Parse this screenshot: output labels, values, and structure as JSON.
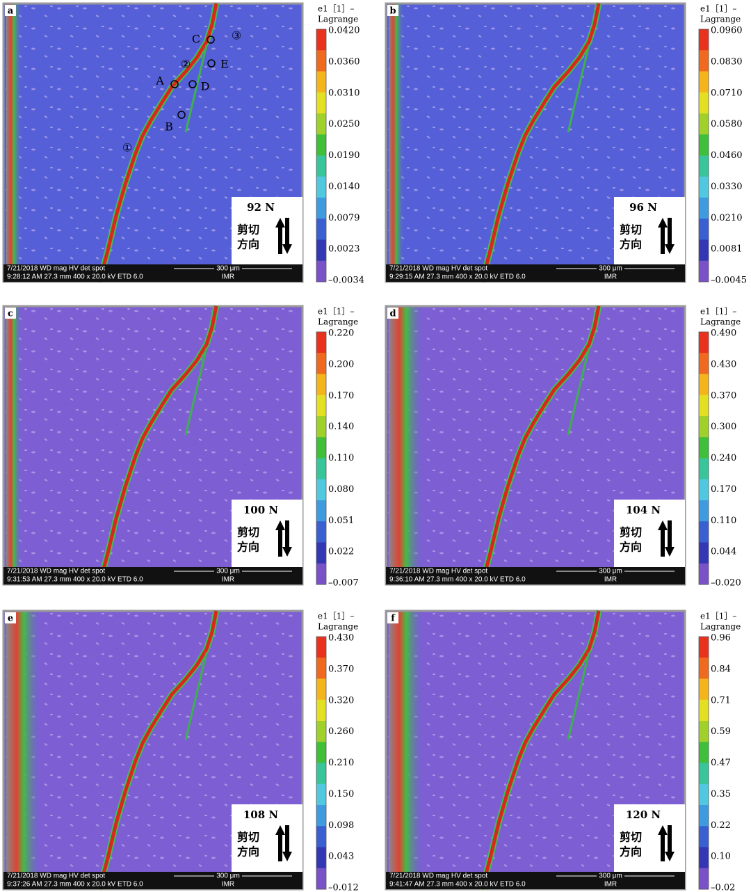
{
  "panels": [
    {
      "label": "a",
      "colorbar": {
        "title": "e1［1］–",
        "subtitle": "Lagrange",
        "ticks": [
          "0.0420",
          "0.0360",
          "0.0310",
          "0.0250",
          "0.0190",
          "0.0140",
          "0.0079",
          "0.0023",
          "–0.0034"
        ]
      },
      "load": "92 N",
      "direction": [
        "剪切",
        "方向"
      ],
      "info": {
        "top": "7/21/2018     WD     mag     HV     det  spot",
        "scale": "300 μm",
        "bottom": "9:28:12 AM 27.3 mm 400 x 20.0 kV ETD  6.0",
        "institute": "IMR"
      },
      "annotations": [
        "A",
        "B",
        "C",
        "D",
        "E",
        "①",
        "②",
        "③"
      ]
    },
    {
      "label": "b",
      "colorbar": {
        "title": "e1［1］–",
        "subtitle": "Lagrange",
        "ticks": [
          "0.0960",
          "0.0830",
          "0.0710",
          "0.0580",
          "0.0460",
          "0.0330",
          "0.0210",
          "0.0081",
          "–0.0045"
        ]
      },
      "load": "96 N",
      "direction": [
        "剪切",
        "方向"
      ],
      "info": {
        "top": "7/21/2018     WD     mag     HV     det  spot",
        "scale": "300 μm",
        "bottom": "9:29:15 AM 27.3 mm 400 x 20.0 kV ETD  6.0",
        "institute": "IMR"
      }
    },
    {
      "label": "c",
      "colorbar": {
        "title": "e1［1］–",
        "subtitle": "Lagrange",
        "ticks": [
          "0.220",
          "0.200",
          "0.170",
          "0.140",
          "0.110",
          "0.080",
          "0.051",
          "0.022",
          "–0.007"
        ]
      },
      "load": "100 N",
      "direction": [
        "剪切",
        "方向"
      ],
      "info": {
        "top": "7/21/2018     WD     mag     HV     det  spot",
        "scale": "300 μm",
        "bottom": "9:31:53 AM 27.3 mm 400 x 20.0 kV ETD  6.0",
        "institute": "IMR"
      }
    },
    {
      "label": "d",
      "colorbar": {
        "title": "e1［1］–",
        "subtitle": "Lagrange",
        "ticks": [
          "0.490",
          "0.430",
          "0.370",
          "0.300",
          "0.240",
          "0.170",
          "0.110",
          "0.044",
          "–0.020"
        ]
      },
      "load": "104 N",
      "direction": [
        "剪切",
        "方向"
      ],
      "info": {
        "top": "7/21/2018     WD     mag     HV     det  spot",
        "scale": "300 μm",
        "bottom": "9:36:10 AM 27.3 mm 400 x 20.0 kV ETD  6.0",
        "institute": "IMR"
      }
    },
    {
      "label": "e",
      "colorbar": {
        "title": "e1［1］–",
        "subtitle": "Lagrange",
        "ticks": [
          "0.430",
          "0.370",
          "0.320",
          "0.260",
          "0.210",
          "0.150",
          "0.098",
          "0.043",
          "–0.012"
        ]
      },
      "load": "108 N",
      "direction": [
        "剪切",
        "方向"
      ],
      "info": {
        "top": "7/21/2018     WD     mag     HV     det  spot",
        "scale": "300 μm",
        "bottom": "9:37:26 AM 27.3 mm 400 x 20.0 kV ETD  6.0",
        "institute": "IMR"
      }
    },
    {
      "label": "f",
      "colorbar": {
        "title": "e1［1］–",
        "subtitle": "Lagrange",
        "ticks": [
          "0.96",
          "0.84",
          "0.71",
          "0.59",
          "0.47",
          "0.35",
          "0.22",
          "0.10",
          "–0.02"
        ]
      },
      "load": "120 N",
      "direction": [
        "剪切",
        "方向"
      ],
      "info": {
        "top": "7/21/2018     WD     mag     HV     det  spot",
        "scale": "300 μm",
        "bottom": "9:41:47 AM 27.3 mm 400 x 20.0 kV ETD  6.0",
        "institute": "IMR"
      }
    }
  ]
}
